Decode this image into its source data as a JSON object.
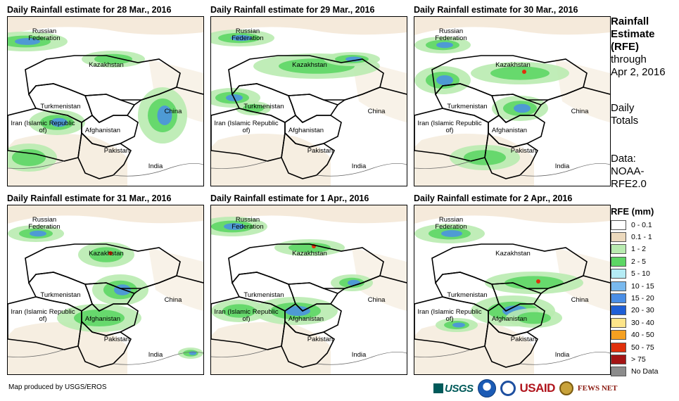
{
  "panels": [
    {
      "title": "Daily Rainfall estimate for 28 Mar., 2016"
    },
    {
      "title": "Daily Rainfall estimate for 29 Mar., 2016"
    },
    {
      "title": "Daily Rainfall estimate for 30 Mar., 2016"
    },
    {
      "title": "Daily Rainfall estimate for 31 Mar., 2016"
    },
    {
      "title": "Daily Rainfall estimate for 1 Apr., 2016"
    },
    {
      "title": "Daily Rainfall estimate for 2 Apr., 2016"
    }
  ],
  "countries": {
    "russia": "Russian Federation",
    "kazakhstan": "Kazakhstan",
    "turkmenistan": "Turkmenistan",
    "china": "China",
    "iran": "Iran (Islamic Republic of)",
    "afghanistan": "Afghanistan",
    "pakistan": "Pakistan",
    "india": "India"
  },
  "side": {
    "line1": "Rainfall",
    "line2": "Estimate",
    "line3": "(RFE)",
    "line4": "through",
    "line5": "Apr 2, 2016",
    "totals1": "Daily",
    "totals2": "Totals",
    "data1": "Data:",
    "data2": "NOAA-",
    "data3": "RFE2.0"
  },
  "legend": {
    "title": "RFE (mm)",
    "items": [
      {
        "label": "0 - 0.1",
        "color": "#ffffff"
      },
      {
        "label": "0.1 - 1",
        "color": "#ecd9bd"
      },
      {
        "label": "1 - 2",
        "color": "#b9ebb0"
      },
      {
        "label": "2 - 5",
        "color": "#5dd665"
      },
      {
        "label": "5 - 10",
        "color": "#b5ecf5"
      },
      {
        "label": "10 - 15",
        "color": "#79b9ee"
      },
      {
        "label": "15 - 20",
        "color": "#4a8ee6"
      },
      {
        "label": "20 - 30",
        "color": "#1f5fd6"
      },
      {
        "label": "30 - 40",
        "color": "#fde58a"
      },
      {
        "label": "40 - 50",
        "color": "#f5a020"
      },
      {
        "label": "50 - 75",
        "color": "#e0300c"
      },
      {
        "label": "> 75",
        "color": "#a51414"
      },
      {
        "label": "No Data",
        "color": "#8c8c8c"
      }
    ]
  },
  "footer": {
    "credit": "Map produced by USGS/EROS",
    "logo_usgs": "USGS",
    "logo_usaid": "USAID",
    "logo_fews": "FEWS NET"
  },
  "colors": {
    "border": "#000000",
    "dry": "#ecd9bd",
    "green_light": "#b9ebb0",
    "green": "#5dd665",
    "blue_light": "#b5ecf5",
    "blue": "#4a8ee6",
    "blue_dark": "#1f5fd6",
    "orange": "#f5a020",
    "red": "#e0300c"
  }
}
